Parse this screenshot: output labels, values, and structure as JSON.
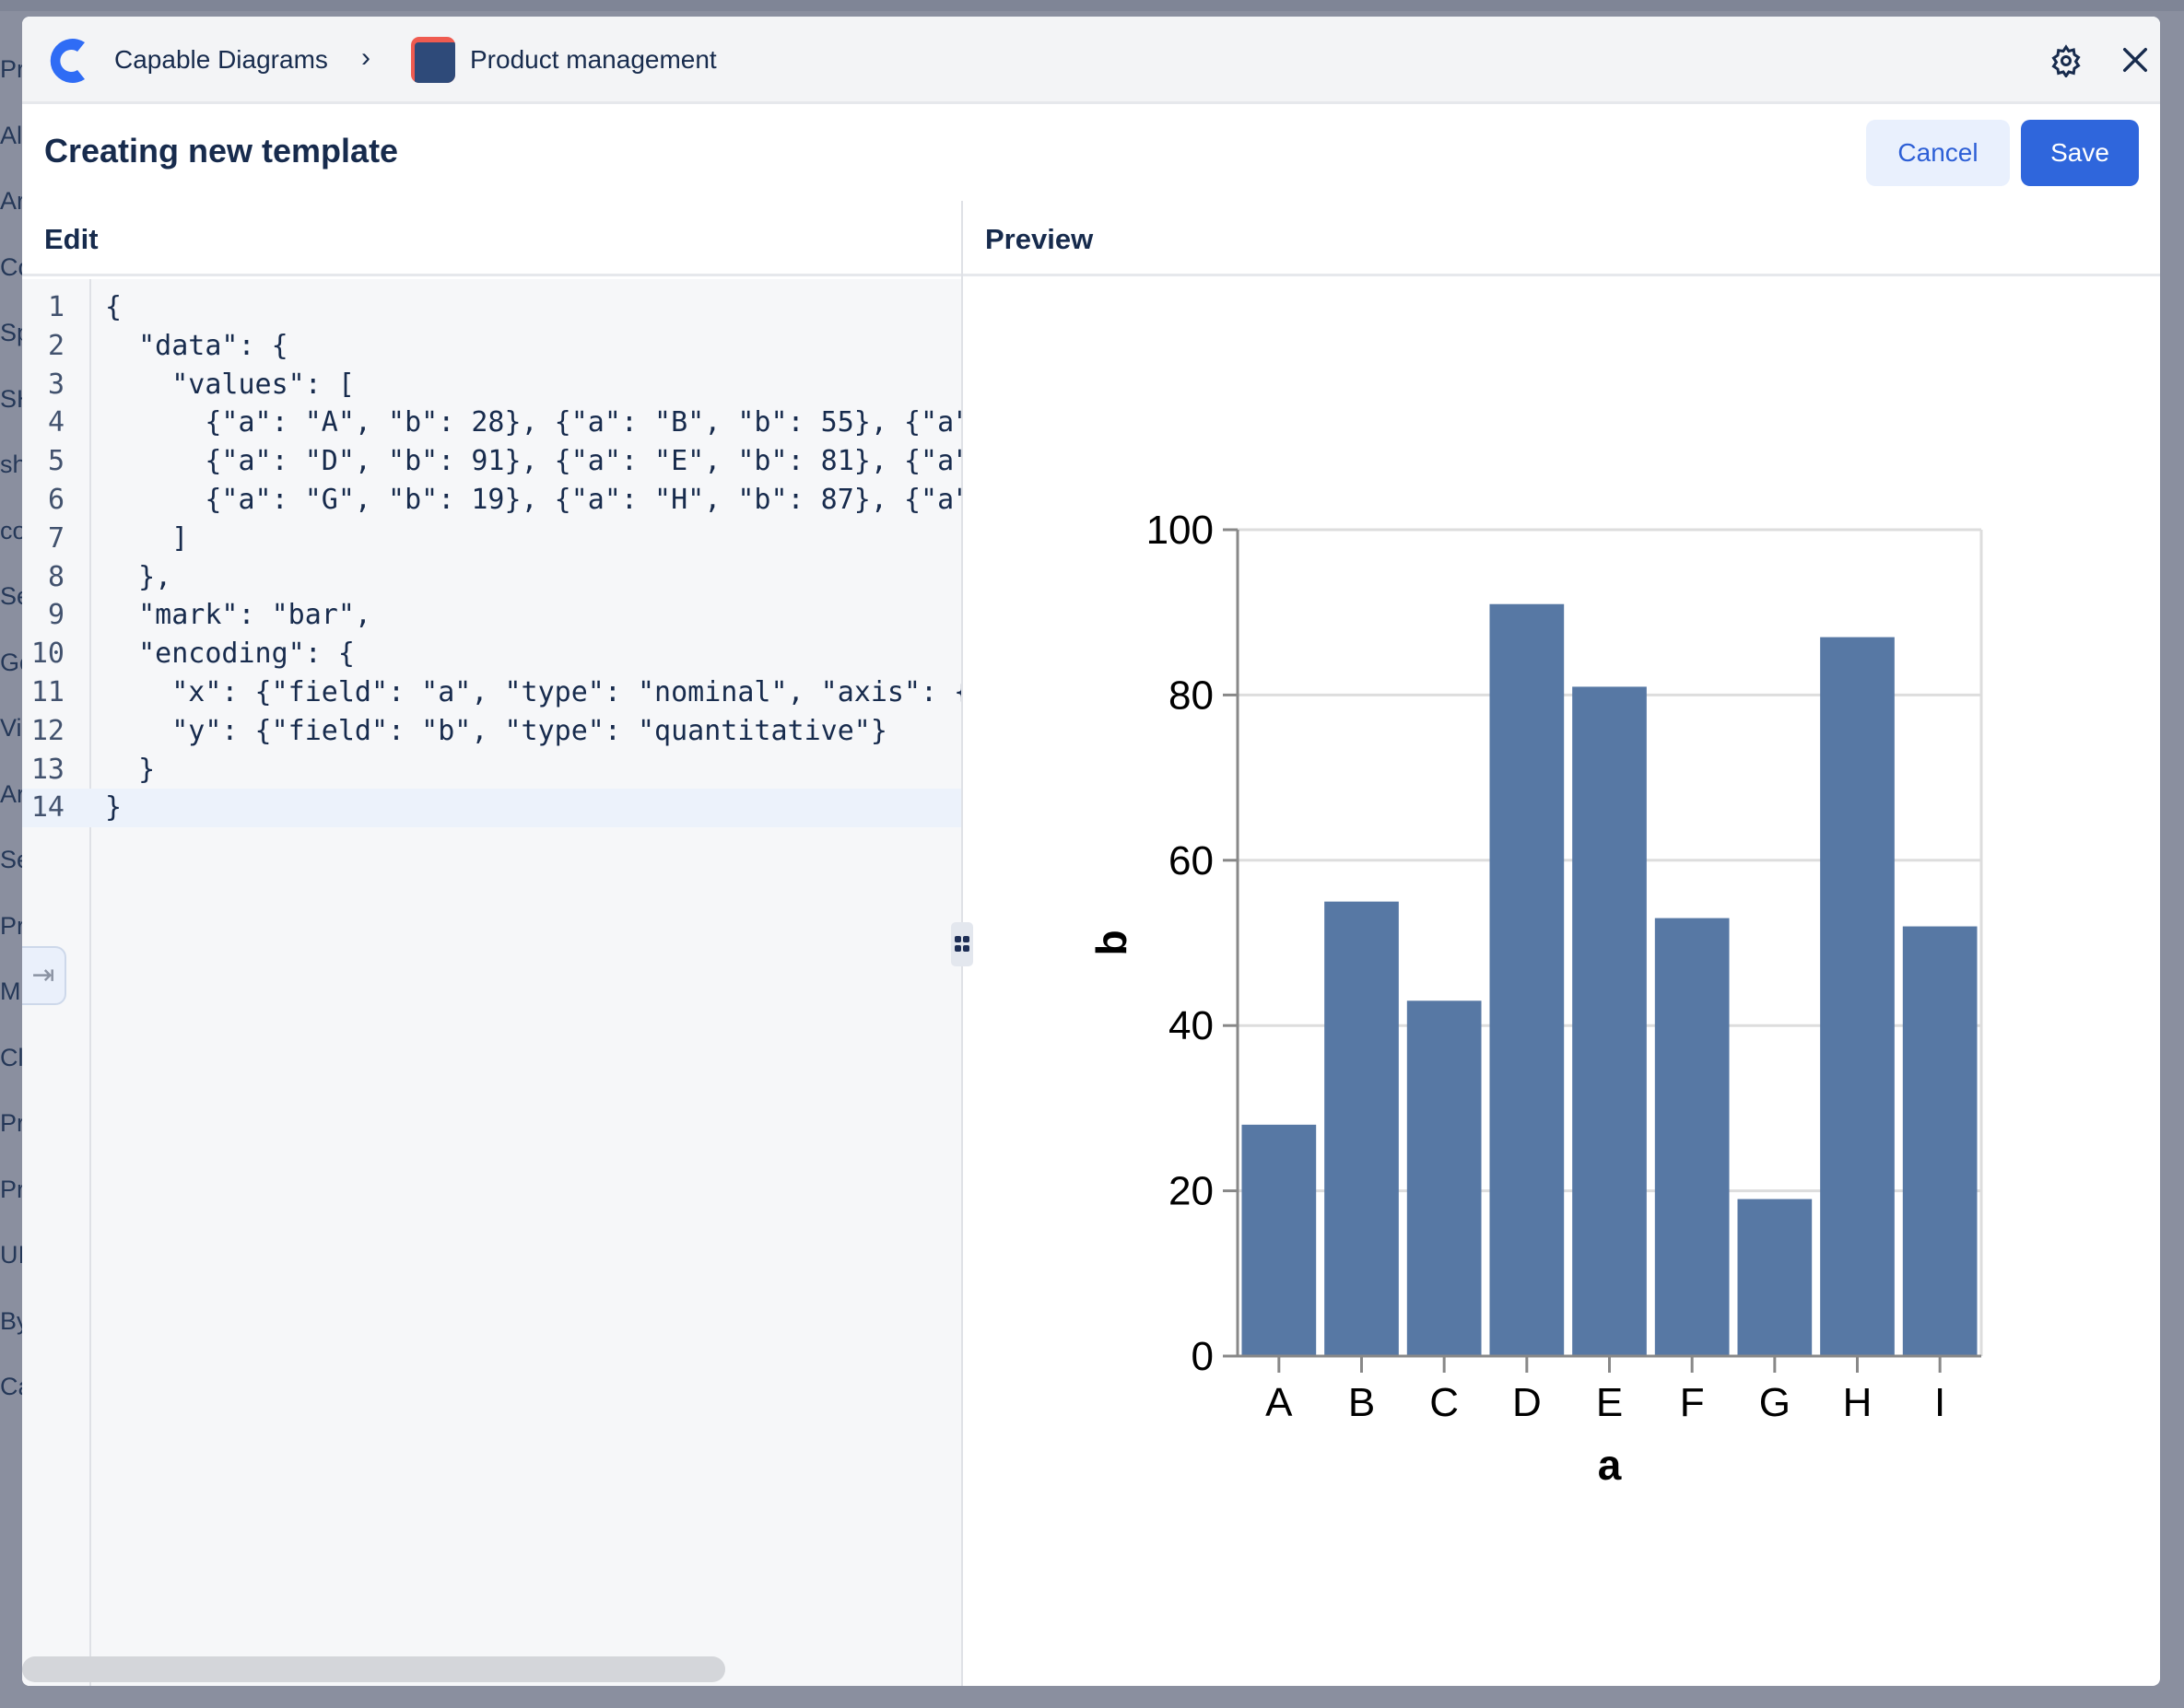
{
  "background_sidebar": [
    "Pr",
    "Al",
    "Ar",
    "Co",
    "Sp",
    "SH",
    "sho",
    "co",
    "Se",
    "Go",
    "Vi",
    "Ar",
    "Se",
    "Pr",
    "M",
    "Cl",
    "Pr",
    "Pr",
    "UI",
    "By",
    "Ca"
  ],
  "header": {
    "app_name": "Capable Diagrams",
    "space_name": "Product management",
    "brand_color": "#2f66dc",
    "icons": [
      "capable-diagrams-logo",
      "chevron-right-icon",
      "product-management-icon",
      "gear-icon",
      "close-icon"
    ]
  },
  "toolbar": {
    "title": "Creating new template",
    "cancel_label": "Cancel",
    "save_label": "Save"
  },
  "panes": {
    "edit_label": "Edit",
    "preview_label": "Preview"
  },
  "editor": {
    "active_line": 14,
    "lines": [
      "{",
      "  \"data\": {",
      "    \"values\": [",
      "      {\"a\": \"A\", \"b\": 28}, {\"a\": \"B\", \"b\": 55}, {\"a\"",
      "      {\"a\": \"D\", \"b\": 91}, {\"a\": \"E\", \"b\": 81}, {\"a\"",
      "      {\"a\": \"G\", \"b\": 19}, {\"a\": \"H\", \"b\": 87}, {\"a\"",
      "    ]",
      "  },",
      "  \"mark\": \"bar\",",
      "  \"encoding\": {",
      "    \"x\": {\"field\": \"a\", \"type\": \"nominal\", \"axis\": {",
      "    \"y\": {\"field\": \"b\", \"type\": \"quantitative\"}",
      "  }",
      "}"
    ]
  },
  "chart_data": {
    "type": "bar",
    "categories": [
      "A",
      "B",
      "C",
      "D",
      "E",
      "F",
      "G",
      "H",
      "I"
    ],
    "values": [
      28,
      55,
      43,
      91,
      81,
      53,
      19,
      87,
      52
    ],
    "xlabel": "a",
    "ylabel": "b",
    "ylim": [
      0,
      100
    ],
    "yticks": [
      "0",
      "20",
      "40",
      "60",
      "80",
      "100"
    ],
    "grid": true,
    "bar_color": "#5778a4"
  }
}
